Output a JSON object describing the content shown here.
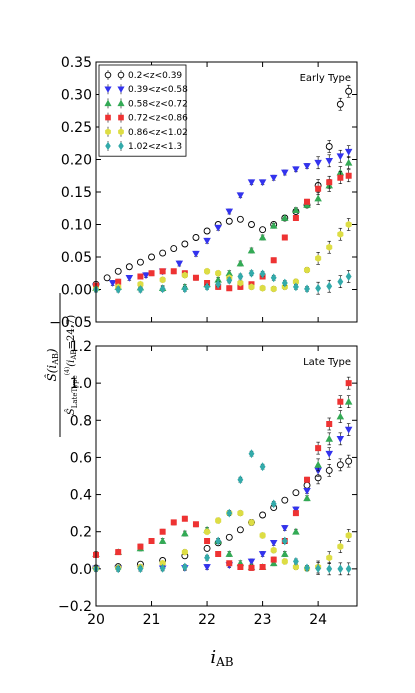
{
  "chart_data": {
    "type": "scatter",
    "xlabel": "i_AB",
    "ylabel": "S(i_AB) / S^(4)_LateType(i_AB=24.7)",
    "xlim": [
      20,
      24.7
    ],
    "xticks": [
      "20",
      "21",
      "22",
      "23",
      "24"
    ],
    "panels": [
      {
        "label": "Early Type",
        "ylim": [
          -0.05,
          0.35
        ],
        "yticks": [
          "−0.05",
          "0.00",
          "0.05",
          "0.10",
          "0.15",
          "0.20",
          "0.25",
          "0.30",
          "0.35"
        ],
        "legend_position": "top-left",
        "series": [
          {
            "name": "0.2<z<0.39",
            "marker": "circle",
            "color": "#ffffff",
            "x": [
              20.0,
              20.2,
              20.4,
              20.6,
              20.8,
              21.0,
              21.2,
              21.4,
              21.6,
              21.8,
              22.0,
              22.2,
              22.4,
              22.6,
              22.8,
              23.0,
              23.2,
              23.4,
              23.6,
              23.8,
              24.0,
              24.2,
              24.4,
              24.55
            ],
            "y": [
              0.008,
              0.018,
              0.028,
              0.035,
              0.042,
              0.05,
              0.056,
              0.063,
              0.07,
              0.08,
              0.09,
              0.1,
              0.105,
              0.108,
              0.1,
              0.092,
              0.1,
              0.11,
              0.12,
              0.13,
              0.16,
              0.22,
              0.285,
              0.305
            ]
          },
          {
            "name": "0.39<z<0.58",
            "marker": "triangle-down",
            "color": "#3333ee",
            "x": [
              20.0,
              20.3,
              20.6,
              20.9,
              21.2,
              21.5,
              21.8,
              22.0,
              22.2,
              22.4,
              22.6,
              22.8,
              23.0,
              23.2,
              23.4,
              23.6,
              23.8,
              24.0,
              24.2,
              24.4,
              24.55
            ],
            "y": [
              0.005,
              0.01,
              0.018,
              0.022,
              0.028,
              0.04,
              0.055,
              0.075,
              0.095,
              0.12,
              0.145,
              0.165,
              0.165,
              0.172,
              0.18,
              0.185,
              0.19,
              0.195,
              0.198,
              0.205,
              0.212
            ]
          },
          {
            "name": "0.58<z<0.72",
            "marker": "triangle-up",
            "color": "#33aa55",
            "x": [
              20.0,
              20.4,
              20.8,
              21.2,
              21.6,
              22.0,
              22.2,
              22.4,
              22.6,
              22.8,
              23.0,
              23.2,
              23.4,
              23.6,
              23.8,
              24.0,
              24.2,
              24.4,
              24.55
            ],
            "y": [
              0.002,
              0.004,
              0.003,
              0.002,
              0.004,
              0.008,
              0.015,
              0.025,
              0.04,
              0.06,
              0.08,
              0.098,
              0.11,
              0.122,
              0.13,
              0.14,
              0.16,
              0.18,
              0.195
            ]
          },
          {
            "name": "0.72<z<0.86",
            "marker": "square",
            "color": "#ee3333",
            "x": [
              20.0,
              20.4,
              20.8,
              21.0,
              21.2,
              21.4,
              21.6,
              21.8,
              22.0,
              22.2,
              22.4,
              22.6,
              22.8,
              23.0,
              23.2,
              23.4,
              23.6,
              23.8,
              24.0,
              24.2,
              24.4,
              24.55
            ],
            "y": [
              0.006,
              0.012,
              0.02,
              0.025,
              0.028,
              0.028,
              0.025,
              0.018,
              0.01,
              0.004,
              0.002,
              0.004,
              0.008,
              0.02,
              0.045,
              0.08,
              0.11,
              0.135,
              0.155,
              0.165,
              0.172,
              0.175
            ]
          },
          {
            "name": "0.86<z<1.02",
            "marker": "hexagon",
            "color": "#dddd44",
            "x": [
              20.0,
              20.4,
              20.8,
              21.2,
              21.6,
              22.0,
              22.2,
              22.4,
              22.6,
              22.8,
              23.0,
              23.2,
              23.4,
              23.6,
              23.8,
              24.0,
              24.2,
              24.4,
              24.55
            ],
            "y": [
              0.001,
              0.004,
              0.008,
              0.015,
              0.022,
              0.028,
              0.025,
              0.018,
              0.01,
              0.004,
              0.002,
              0.001,
              0.004,
              0.012,
              0.03,
              0.048,
              0.065,
              0.085,
              0.1
            ]
          },
          {
            "name": "1.02<z<1.3",
            "marker": "diamond",
            "color": "#33aaaa",
            "x": [
              20.0,
              20.4,
              20.8,
              21.2,
              21.6,
              22.0,
              22.2,
              22.4,
              22.6,
              22.8,
              23.0,
              23.2,
              23.4,
              23.6,
              23.8,
              24.0,
              24.2,
              24.4,
              24.55
            ],
            "y": [
              0.0,
              0.0,
              0.0,
              0.001,
              0.001,
              0.004,
              0.008,
              0.014,
              0.02,
              0.025,
              0.024,
              0.018,
              0.01,
              0.004,
              0.001,
              0.002,
              0.005,
              0.012,
              0.02
            ]
          }
        ]
      },
      {
        "label": "Late Type",
        "ylim": [
          -0.2,
          1.2
        ],
        "yticks": [
          "−0.2",
          "0.0",
          "0.2",
          "0.4",
          "0.6",
          "0.8",
          "1.0",
          "1.2"
        ],
        "series": [
          {
            "name": "0.2<z<0.39",
            "marker": "circle",
            "color": "#ffffff",
            "x": [
              20.0,
              20.4,
              20.8,
              21.2,
              21.6,
              22.0,
              22.2,
              22.4,
              22.6,
              22.8,
              23.0,
              23.2,
              23.4,
              23.6,
              23.8,
              24.0,
              24.2,
              24.4,
              24.55
            ],
            "y": [
              0.005,
              0.012,
              0.025,
              0.045,
              0.07,
              0.11,
              0.14,
              0.17,
              0.21,
              0.25,
              0.29,
              0.33,
              0.37,
              0.41,
              0.45,
              0.49,
              0.53,
              0.56,
              0.58
            ]
          },
          {
            "name": "0.39<z<0.58",
            "marker": "triangle-down",
            "color": "#3333ee",
            "x": [
              20.0,
              20.4,
              20.8,
              21.2,
              21.6,
              22.0,
              22.4,
              22.8,
              23.0,
              23.2,
              23.4,
              23.6,
              23.8,
              24.0,
              24.2,
              24.4,
              24.55
            ],
            "y": [
              0.002,
              0.002,
              0.002,
              0.003,
              0.005,
              0.01,
              0.02,
              0.04,
              0.08,
              0.14,
              0.22,
              0.32,
              0.42,
              0.53,
              0.62,
              0.7,
              0.75
            ]
          },
          {
            "name": "0.58<z<0.72",
            "marker": "triangle-up",
            "color": "#33aa55",
            "x": [
              20.0,
              20.4,
              20.8,
              21.2,
              21.6,
              22.0,
              22.2,
              22.4,
              22.6,
              22.8,
              23.0,
              23.2,
              23.4,
              23.6,
              23.8,
              24.0,
              24.2,
              24.4,
              24.55
            ],
            "y": [
              0.08,
              0.09,
              0.11,
              0.15,
              0.19,
              0.21,
              0.15,
              0.08,
              0.03,
              0.01,
              0.01,
              0.03,
              0.08,
              0.2,
              0.38,
              0.56,
              0.7,
              0.82,
              0.9
            ]
          },
          {
            "name": "0.72<z<0.86",
            "marker": "square",
            "color": "#ee3333",
            "x": [
              20.0,
              20.4,
              20.8,
              21.0,
              21.2,
              21.4,
              21.6,
              21.8,
              22.0,
              22.2,
              22.4,
              22.6,
              22.8,
              23.0,
              23.2,
              23.4,
              23.6,
              23.8,
              24.0,
              24.2,
              24.4,
              24.55
            ],
            "y": [
              0.075,
              0.09,
              0.12,
              0.15,
              0.2,
              0.25,
              0.27,
              0.24,
              0.15,
              0.08,
              0.03,
              0.01,
              0.005,
              0.01,
              0.05,
              0.15,
              0.3,
              0.48,
              0.65,
              0.78,
              0.9,
              1.0
            ]
          },
          {
            "name": "0.86<z<1.02",
            "marker": "hexagon",
            "color": "#dddd44",
            "x": [
              20.0,
              20.4,
              20.8,
              21.2,
              21.6,
              22.0,
              22.2,
              22.4,
              22.6,
              22.8,
              23.0,
              23.2,
              23.4,
              23.6,
              23.8,
              24.0,
              24.2,
              24.4,
              24.55
            ],
            "y": [
              0.002,
              0.005,
              0.01,
              0.03,
              0.09,
              0.2,
              0.26,
              0.3,
              0.3,
              0.25,
              0.18,
              0.1,
              0.04,
              0.01,
              0.002,
              0.01,
              0.06,
              0.12,
              0.18
            ]
          },
          {
            "name": "1.02<z<1.3",
            "marker": "diamond",
            "color": "#33aaaa",
            "x": [
              20.0,
              20.4,
              20.8,
              21.2,
              21.6,
              22.0,
              22.2,
              22.4,
              22.6,
              22.8,
              23.0,
              23.2,
              23.4,
              23.6,
              23.8,
              24.0,
              24.2,
              24.4,
              24.55
            ],
            "y": [
              0.0,
              0.0,
              0.001,
              0.003,
              0.01,
              0.06,
              0.15,
              0.3,
              0.48,
              0.62,
              0.55,
              0.35,
              0.15,
              0.04,
              0.005,
              0.002,
              0.0,
              0.0,
              0.0
            ]
          }
        ]
      }
    ]
  }
}
